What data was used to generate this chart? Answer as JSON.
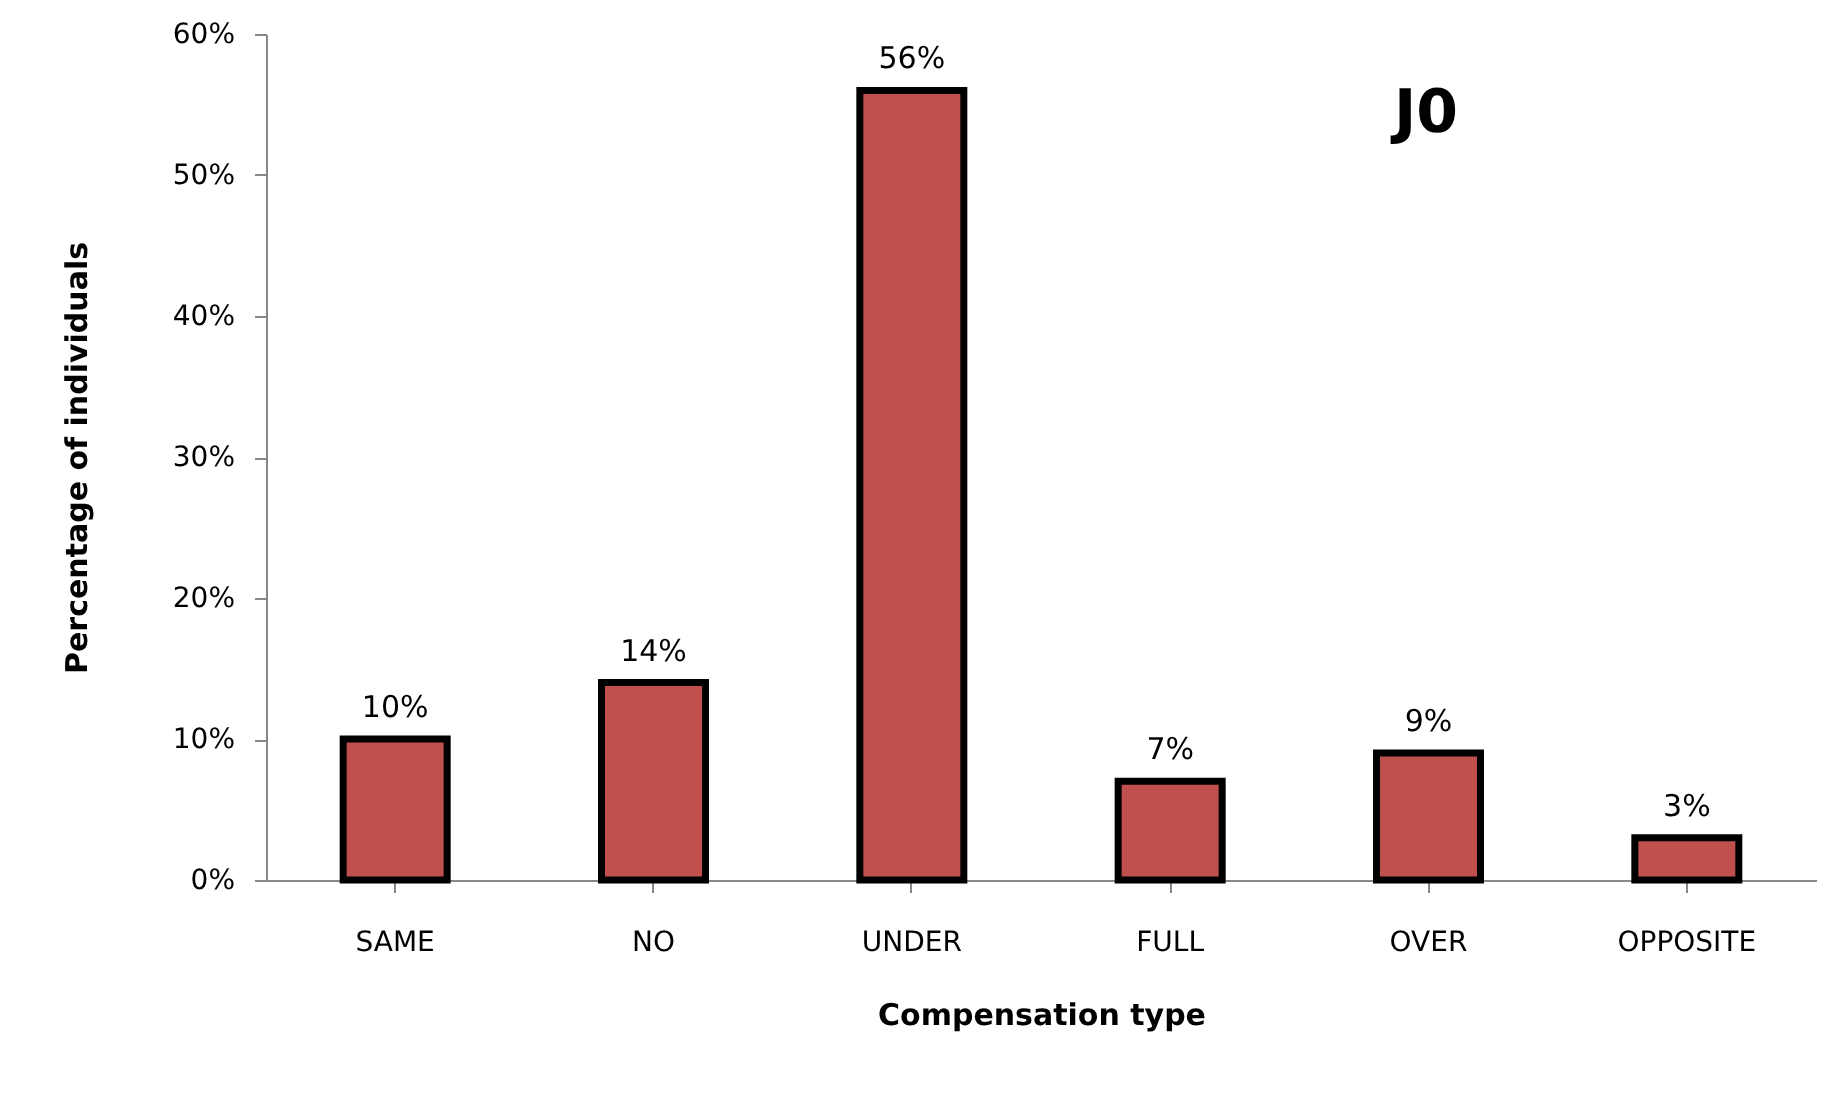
{
  "chart_data": {
    "type": "bar",
    "xlabel": "Compensation type",
    "ylabel": "Percentage of individuals",
    "categories": [
      "SAME",
      "NO",
      "UNDER",
      "FULL",
      "OVER",
      "OPPOSITE"
    ],
    "values": [
      10,
      14,
      56,
      7,
      9,
      3
    ],
    "color": "#c0504d",
    "data_labels": true,
    "value_labels": [
      "10%",
      "14%",
      "56%",
      "7%",
      "9%",
      "3%"
    ],
    "ylim": [
      0,
      60
    ],
    "yticks": [
      {
        "value": 0,
        "label": "0%"
      },
      {
        "value": 10,
        "label": "10%"
      },
      {
        "value": 20,
        "label": "20%"
      },
      {
        "value": 30,
        "label": "30%"
      },
      {
        "value": 40,
        "label": "40%"
      },
      {
        "value": 50,
        "label": "50%"
      },
      {
        "value": 60,
        "label": "60%"
      }
    ],
    "grid": false,
    "annotations": [
      "J0"
    ]
  }
}
